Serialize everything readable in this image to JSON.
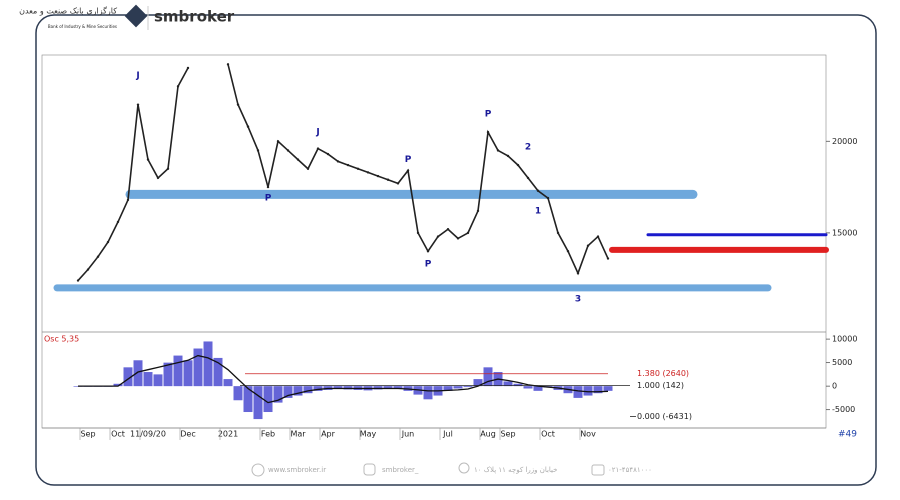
{
  "header": {
    "brand": "smbroker",
    "bank_name": "کارگزاری بانک صنعت و معدن",
    "bank_name_en": "Bank of Industry & Mine Securities"
  },
  "footer": {
    "website": "www.smbroker.ir",
    "instagram": "smbroker_",
    "address": "خیابان وزرا کوچه ۱۱ پلاک ۱۰",
    "phone": "۰۲۱-۴۵۴۸۱۰۰۰"
  },
  "corner_label": "#49",
  "chart_data": [
    {
      "type": "line",
      "color": "#222222",
      "categories": [
        null,
        "Sep",
        null,
        null,
        "Oct",
        null,
        null,
        "11/09/20",
        null,
        null,
        null,
        "Dec",
        null,
        null,
        null,
        "2021",
        null,
        null,
        null,
        "Feb",
        null,
        null,
        "Mar",
        null,
        null,
        "Apr",
        null,
        null,
        null,
        "May",
        null,
        null,
        null,
        "Jun",
        null,
        null,
        null,
        "Jul",
        null,
        null,
        null,
        "Aug",
        null,
        "Sep",
        null,
        null,
        null,
        "Oct",
        null,
        null,
        null,
        "Nov",
        null,
        null
      ],
      "values": [
        12400,
        13000,
        13700,
        14500,
        15600,
        16800,
        22000,
        19000,
        18000,
        18500,
        23000,
        24000,
        null,
        null,
        null,
        24200,
        22000,
        20800,
        19500,
        17500,
        20000,
        19500,
        19000,
        18500,
        19600,
        19300,
        18900,
        18700,
        18500,
        18300,
        18100,
        17900,
        17700,
        18400,
        15000,
        14000,
        14800,
        15200,
        14700,
        15000,
        16200,
        20500,
        19500,
        19200,
        18700,
        18000,
        17300,
        16900,
        15000,
        14000,
        12800,
        14300,
        14800,
        13600
      ],
      "ylim": [
        9700,
        24600
      ],
      "yticks": [
        15000,
        20000
      ],
      "levels": [
        {
          "value": 17100,
          "color": "#6fa8dc"
        },
        {
          "value": 12000,
          "color": "#6fa8dc"
        },
        {
          "value": 14900,
          "color": "#1a1acc"
        },
        {
          "value": 14070,
          "color": "#e02020"
        }
      ],
      "wave_labels": [
        {
          "index": 6,
          "value": 23600,
          "label": "J"
        },
        {
          "index": 19,
          "value": 16900,
          "label": "P"
        },
        {
          "index": 24,
          "value": 20500,
          "label": "J"
        },
        {
          "index": 33,
          "value": 19000,
          "label": "P"
        },
        {
          "index": 35,
          "value": 13300,
          "label": "P"
        },
        {
          "index": 41,
          "value": 21500,
          "label": "P"
        },
        {
          "index": 45,
          "value": 19700,
          "label": "2"
        },
        {
          "index": 46,
          "value": 16200,
          "label": "1"
        },
        {
          "index": 50,
          "value": 11400,
          "label": "3"
        }
      ]
    },
    {
      "type": "bar",
      "title": "Osc 5,35",
      "color": "#4a4ad0",
      "values": [
        0,
        0,
        0,
        0,
        500,
        4000,
        5500,
        3000,
        2500,
        5000,
        6500,
        5500,
        8000,
        9500,
        6000,
        1500,
        -3000,
        -5500,
        -7000,
        -5500,
        -3500,
        -2500,
        -2000,
        -1500,
        -1000,
        -800,
        -600,
        -700,
        -800,
        -900,
        -700,
        -600,
        -500,
        -1000,
        -1800,
        -2800,
        -2000,
        -1000,
        -500,
        -200,
        1500,
        4000,
        3000,
        1000,
        500,
        -500,
        -1000,
        -300,
        -800,
        -1500,
        -2500,
        -2000,
        -1500,
        -1000
      ],
      "signal": {
        "color": "#111111",
        "values": [
          0,
          0,
          0,
          0,
          0,
          1500,
          3000,
          3500,
          4000,
          4500,
          5000,
          5500,
          6500,
          6000,
          5000,
          3500,
          1500,
          -500,
          -2000,
          -3500,
          -3000,
          -2000,
          -1500,
          -1000,
          -700,
          -500,
          -500,
          -500,
          -500,
          -500,
          -500,
          -500,
          -500,
          -600,
          -800,
          -1000,
          -1000,
          -900,
          -800,
          -600,
          0,
          1000,
          1500,
          1200,
          800,
          300,
          0,
          -200,
          -400,
          -700,
          -1000,
          -1200,
          -1200,
          -1100
        ]
      },
      "ylim": [
        -8900,
        11300
      ],
      "yticks": [
        -5000,
        0,
        5000,
        10000
      ],
      "levels": [
        {
          "value": 2640,
          "label": "1.380 (2640)",
          "color": "#cc2222"
        },
        {
          "value": 142,
          "label": "1.000 (142)",
          "color": "#222222"
        },
        {
          "value": -6431,
          "label": "0.000 (-6431)",
          "color": "#222222"
        }
      ]
    }
  ]
}
